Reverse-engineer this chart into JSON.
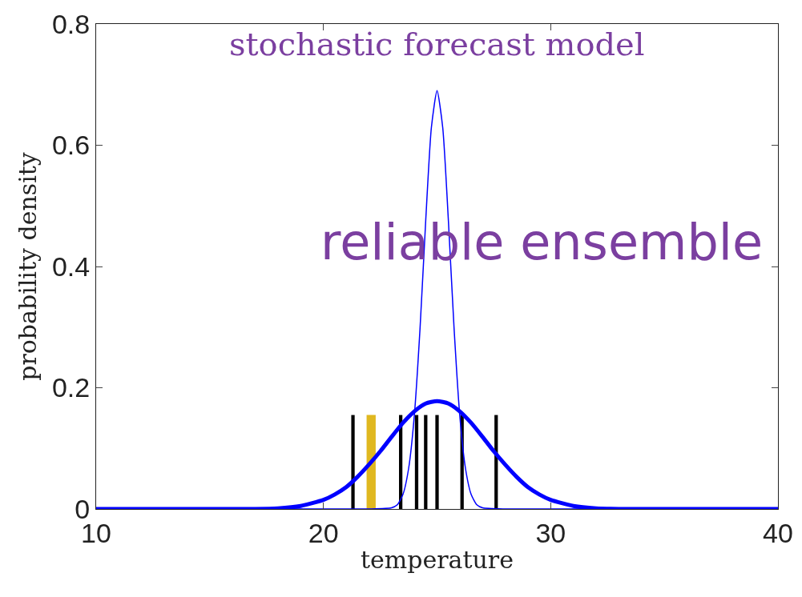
{
  "chart_data": {
    "type": "line",
    "xlabel": "temperature",
    "ylabel": "probability density",
    "xlim": [
      10,
      40
    ],
    "xticks": [
      10,
      20,
      30,
      40
    ],
    "ylim": [
      0,
      0.8
    ],
    "yticks": [
      0,
      0.2,
      0.4,
      0.6,
      0.8
    ],
    "annotations": [
      "stochastic forecast model",
      "reliable ensemble"
    ],
    "series": [
      {
        "color": "#0000ff",
        "x": [
          10,
          20,
          22,
          23,
          23.25,
          23.5,
          23.75,
          24,
          24.25,
          24.5,
          24.75,
          25,
          25.25,
          25.5,
          25.75,
          26,
          26.25,
          26.5,
          26.75,
          27,
          28,
          30,
          40
        ],
        "values": [
          0,
          0,
          0,
          0.002,
          0.007,
          0.024,
          0.067,
          0.154,
          0.297,
          0.475,
          0.629,
          0.69,
          0.629,
          0.475,
          0.297,
          0.154,
          0.067,
          0.024,
          0.007,
          0.002,
          0,
          0,
          0
        ]
      },
      {
        "color": "#0000ff",
        "x": [
          10,
          15,
          17,
          18,
          19,
          20,
          20.5,
          21,
          21.5,
          22,
          22.5,
          23,
          23.5,
          24,
          24.5,
          25,
          25.5,
          26,
          26.5,
          27,
          27.5,
          28,
          28.5,
          29,
          29.5,
          30,
          31,
          32,
          33,
          35,
          40
        ],
        "values": [
          0,
          0,
          0,
          0.001,
          0.005,
          0.015,
          0.024,
          0.036,
          0.053,
          0.073,
          0.095,
          0.119,
          0.142,
          0.161,
          0.174,
          0.178,
          0.174,
          0.161,
          0.142,
          0.119,
          0.095,
          0.073,
          0.053,
          0.036,
          0.024,
          0.015,
          0.005,
          0.001,
          0,
          0,
          0
        ]
      },
      {
        "type": "bar",
        "color": "#000000",
        "x": [
          21.3,
          23.4,
          24.1,
          24.5,
          25.0,
          26.1,
          27.6
        ],
        "values": [
          0.155,
          0.155,
          0.155,
          0.155,
          0.155,
          0.155,
          0.155
        ]
      },
      {
        "type": "bar",
        "color": "#e0b820",
        "x": [
          22.1
        ],
        "values": [
          0.155
        ]
      }
    ]
  }
}
